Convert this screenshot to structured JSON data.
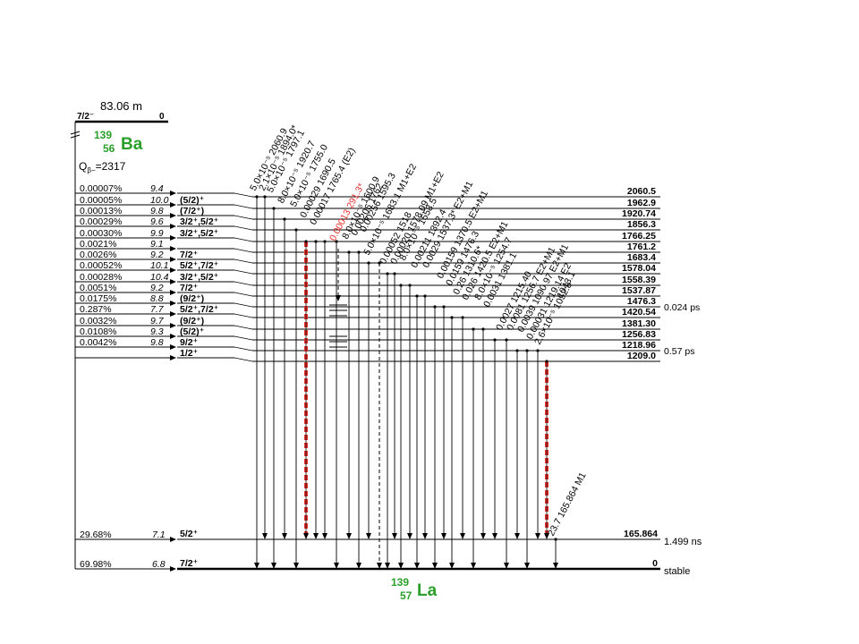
{
  "parent": {
    "half_life": "83.06 m",
    "spin": "7/2⁻",
    "energy": "0",
    "mass": "139",
    "z": "56",
    "symbol": "Ba",
    "q_value": "=2317",
    "q_prefix": "Q",
    "q_sub": "β−"
  },
  "daughter": {
    "mass": "139",
    "z": "57",
    "symbol": "La"
  },
  "colors": {
    "nuclide": "#2aa02a",
    "highlight": "#e8322e",
    "line": "#000000"
  },
  "branches": [
    {
      "intensity": "0.00007%",
      "logft": "9.4",
      "spin": ""
    },
    {
      "intensity": "0.00005%",
      "logft": "10.0",
      "spin": "(5/2)⁺"
    },
    {
      "intensity": "0.00013%",
      "logft": "9.8",
      "spin": "(7/2⁺)"
    },
    {
      "intensity": "0.00029%",
      "logft": "9.6",
      "spin": "3/2⁺,5/2⁺"
    },
    {
      "intensity": "0.00030%",
      "logft": "9.9",
      "spin": "3/2⁺,5/2⁺"
    },
    {
      "intensity": "0.0021%",
      "logft": "9.1",
      "spin": ""
    },
    {
      "intensity": "0.0026%",
      "logft": "9.2",
      "spin": "7/2⁺"
    },
    {
      "intensity": "0.00052%",
      "logft": "10.1",
      "spin": "5/2⁺,7/2⁺"
    },
    {
      "intensity": "0.00028%",
      "logft": "10.4",
      "spin": "3/2⁺,5/2⁺"
    },
    {
      "intensity": "0.0051%",
      "logft": "9.2",
      "spin": "7/2⁺"
    },
    {
      "intensity": "0.0175%",
      "logft": "8.8",
      "spin": "(9/2⁺)"
    },
    {
      "intensity": "0.287%",
      "logft": "7.7",
      "spin": "5/2⁺,7/2⁺"
    },
    {
      "intensity": "0.0032%",
      "logft": "9.7",
      "spin": "(9/2⁺)"
    },
    {
      "intensity": "0.0108%",
      "logft": "9.3",
      "spin": "(5/2)⁺"
    },
    {
      "intensity": "0.0042%",
      "logft": "9.8",
      "spin": "9/2⁺"
    },
    {
      "intensity": "",
      "logft": "",
      "spin": "1/2⁺"
    }
  ],
  "levels": [
    {
      "energy": "2060.5",
      "halflife": ""
    },
    {
      "energy": "1962.9",
      "halflife": ""
    },
    {
      "energy": "1920.74",
      "halflife": ""
    },
    {
      "energy": "1856.3",
      "halflife": ""
    },
    {
      "energy": "1766.25",
      "halflife": ""
    },
    {
      "energy": "1761.2",
      "halflife": ""
    },
    {
      "energy": "1683.4",
      "halflife": ""
    },
    {
      "energy": "1578.04",
      "halflife": ""
    },
    {
      "energy": "1558.39",
      "halflife": ""
    },
    {
      "energy": "1537.87",
      "halflife": ""
    },
    {
      "energy": "1476.3",
      "halflife": "0.024 ps"
    },
    {
      "energy": "1420.54",
      "halflife": ""
    },
    {
      "energy": "1381.30",
      "halflife": ""
    },
    {
      "energy": "1256.83",
      "halflife": ""
    },
    {
      "energy": "1218.96",
      "halflife": "0.57 ps"
    },
    {
      "energy": "1209.0",
      "halflife": ""
    }
  ],
  "low_levels": [
    {
      "intensity": "29.68%",
      "logft": "7.1",
      "spin": "5/2⁺",
      "energy": "165.864",
      "halflife": "1.499 ns"
    },
    {
      "intensity": "69.98%",
      "logft": "6.8",
      "spin": "7/2⁺",
      "energy": "0",
      "halflife": "stable"
    }
  ],
  "gamma_labels": [
    "5.0×10⁻⁵ 2060.9",
    "2.1×10⁻⁵ 1894.0*",
    "5.0×10⁻⁵ 1797.1",
    "8.0×10⁻⁵ 1920.7",
    "5.0×10⁻⁵ 1755.0",
    "0.00029 1690.5",
    "0.00017 1765.4 (E2)",
    "0.00013 291.3*",
    "8.0×10⁻⁵ 1600.9",
    "0.00206 1762",
    "0.00256 1595.3",
    "5.0×10⁻⁵ 1683.1 M1+E2",
    "0.00052 1518",
    "0.00020 1578.09 M1+E2",
    "8.0×10⁻⁵ 1558.5",
    "0.00211 1392.4",
    "0.0029 1537.3* E2+M1",
    "0.00159 1370.5 E2+M1",
    "0.0159 1476.3",
    "0.26 1310.6*",
    "0.026 1420.5 E2+M1",
    "8.0×10⁻⁵ 1254.7",
    "0.0031 1381.1",
    "0.0027 1215.40",
    "0.0081 1256.7 E2+M1",
    "0.0039 1090.97 E2+M1",
    "0.00031 1219.14 E2",
    "2.6×10⁻⁵ 1052.8",
    "23.7 165.864 M1",
    "1043.1"
  ]
}
